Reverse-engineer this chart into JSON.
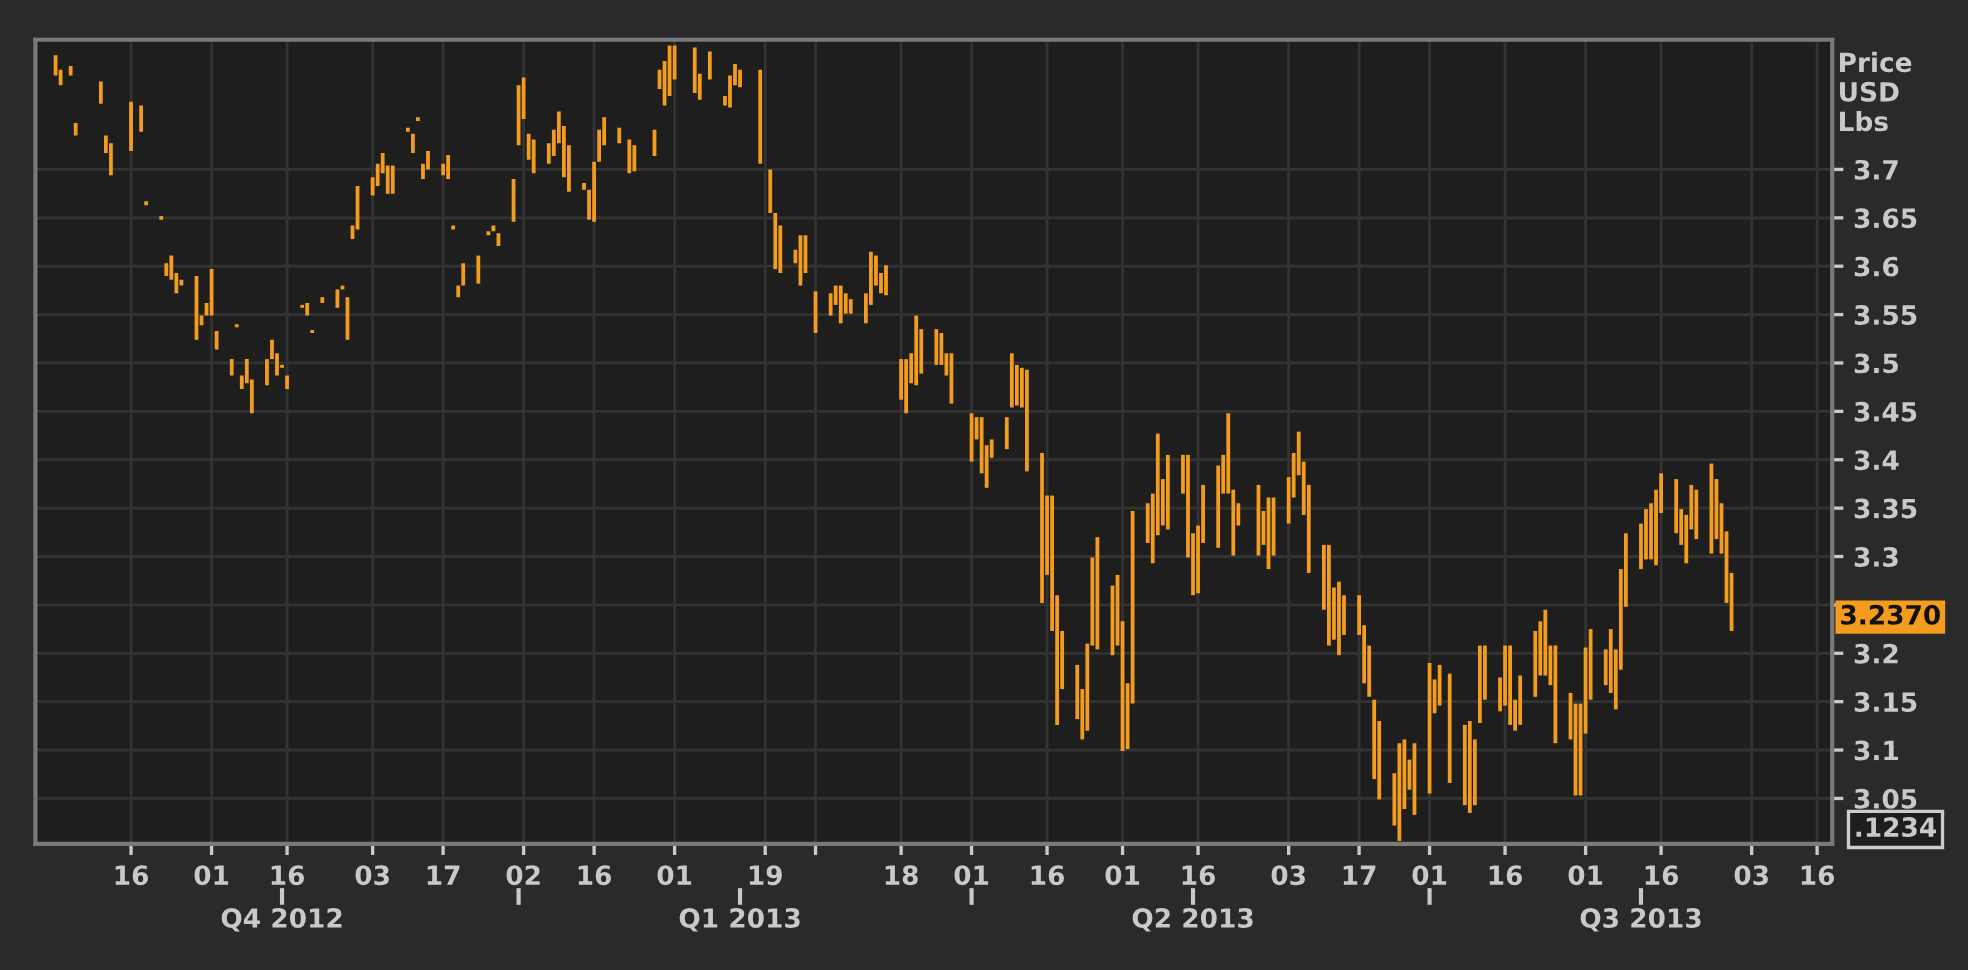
{
  "chart_data": {
    "type": "bar",
    "ylabel": "Price\nUSD\nLbs",
    "x": [
      "2012-10-01",
      "2012-10-02",
      "2012-10-04",
      "2012-10-05",
      "2012-10-10",
      "2012-10-11",
      "2012-10-12",
      "2012-10-16",
      "2012-10-18",
      "2012-10-19",
      "2012-10-22",
      "2012-10-23",
      "2012-10-24",
      "2012-10-25",
      "2012-10-26",
      "2012-10-29",
      "2012-10-30",
      "2012-10-31",
      "2012-11-01",
      "2012-11-02",
      "2012-11-05",
      "2012-11-06",
      "2012-11-07",
      "2012-11-08",
      "2012-11-09",
      "2012-11-12",
      "2012-11-13",
      "2012-11-14",
      "2012-11-15",
      "2012-11-16",
      "2012-11-19",
      "2012-11-20",
      "2012-11-21",
      "2012-11-23",
      "2012-11-26",
      "2012-11-27",
      "2012-11-28",
      "2012-11-29",
      "2012-11-30",
      "2012-12-03",
      "2012-12-04",
      "2012-12-05",
      "2012-12-06",
      "2012-12-07",
      "2012-12-10",
      "2012-12-11",
      "2012-12-12",
      "2012-12-13",
      "2012-12-14",
      "2012-12-17",
      "2012-12-18",
      "2012-12-19",
      "2012-12-20",
      "2012-12-21",
      "2012-12-24",
      "2012-12-26",
      "2012-12-27",
      "2012-12-28",
      "2012-12-31",
      "2013-01-01",
      "2013-01-02",
      "2013-01-03",
      "2013-01-04",
      "2013-01-07",
      "2013-01-08",
      "2013-01-09",
      "2013-01-10",
      "2013-01-11",
      "2013-01-14",
      "2013-01-15",
      "2013-01-16",
      "2013-01-17",
      "2013-01-18",
      "2013-01-21",
      "2013-01-23",
      "2013-01-24",
      "2013-01-28",
      "2013-01-29",
      "2013-01-30",
      "2013-01-31",
      "2013-02-01",
      "2013-02-05",
      "2013-02-06",
      "2013-02-08",
      "2013-02-11",
      "2013-02-12",
      "2013-02-13",
      "2013-02-14",
      "2013-02-18",
      "2013-02-20",
      "2013-02-21",
      "2013-02-22",
      "2013-02-25",
      "2013-02-26",
      "2013-02-27",
      "2013-03-01",
      "2013-03-04",
      "2013-03-05",
      "2013-03-06",
      "2013-03-07",
      "2013-03-08",
      "2013-03-11",
      "2013-03-12",
      "2013-03-13",
      "2013-03-14",
      "2013-03-15",
      "2013-03-18",
      "2013-03-19",
      "2013-03-20",
      "2013-03-21",
      "2013-03-22",
      "2013-03-25",
      "2013-03-26",
      "2013-03-27",
      "2013-03-28",
      "2013-04-01",
      "2013-04-02",
      "2013-04-03",
      "2013-04-04",
      "2013-04-05",
      "2013-04-08",
      "2013-04-09",
      "2013-04-10",
      "2013-04-11",
      "2013-04-12",
      "2013-04-15",
      "2013-04-16",
      "2013-04-17",
      "2013-04-18",
      "2013-04-19",
      "2013-04-22",
      "2013-04-23",
      "2013-04-24",
      "2013-04-25",
      "2013-04-26",
      "2013-04-29",
      "2013-04-30",
      "2013-05-01",
      "2013-05-02",
      "2013-05-03",
      "2013-05-06",
      "2013-05-07",
      "2013-05-08",
      "2013-05-09",
      "2013-05-10",
      "2013-05-13",
      "2013-05-14",
      "2013-05-15",
      "2013-05-16",
      "2013-05-17",
      "2013-05-20",
      "2013-05-21",
      "2013-05-22",
      "2013-05-23",
      "2013-05-24",
      "2013-05-28",
      "2013-05-29",
      "2013-05-30",
      "2013-05-31",
      "2013-06-03",
      "2013-06-04",
      "2013-06-05",
      "2013-06-06",
      "2013-06-07",
      "2013-06-10",
      "2013-06-11",
      "2013-06-12",
      "2013-06-13",
      "2013-06-14",
      "2013-06-17",
      "2013-06-18",
      "2013-06-19",
      "2013-06-20",
      "2013-06-21",
      "2013-06-24",
      "2013-06-25",
      "2013-06-26",
      "2013-06-27",
      "2013-06-28",
      "2013-07-01",
      "2013-07-02",
      "2013-07-03",
      "2013-07-05",
      "2013-07-08",
      "2013-07-09",
      "2013-07-10",
      "2013-07-11",
      "2013-07-12",
      "2013-07-15",
      "2013-07-16",
      "2013-07-17",
      "2013-07-18",
      "2013-07-19",
      "2013-07-22",
      "2013-07-23",
      "2013-07-24",
      "2013-07-25",
      "2013-07-26",
      "2013-07-29",
      "2013-07-30",
      "2013-07-31",
      "2013-08-01",
      "2013-08-02",
      "2013-08-05",
      "2013-08-06",
      "2013-08-07",
      "2013-08-08",
      "2013-08-09",
      "2013-08-12",
      "2013-08-13",
      "2013-08-14",
      "2013-08-15",
      "2013-08-16",
      "2013-08-19",
      "2013-08-20",
      "2013-08-21",
      "2013-08-22",
      "2013-08-23",
      "2013-08-26",
      "2013-08-27",
      "2013-08-28",
      "2013-08-29",
      "2013-08-30"
    ],
    "base": [
      3.797,
      3.787,
      3.797,
      3.735,
      3.768,
      3.717,
      3.694,
      3.719,
      3.739,
      3.663,
      3.648,
      3.59,
      3.586,
      3.572,
      3.58,
      3.524,
      3.539,
      3.549,
      3.549,
      3.514,
      3.487,
      3.537,
      3.473,
      3.479,
      3.448,
      3.477,
      3.504,
      3.487,
      3.495,
      3.473,
      3.557,
      3.549,
      3.531,
      3.562,
      3.557,
      3.576,
      3.524,
      3.628,
      3.638,
      3.673,
      3.683,
      3.696,
      3.675,
      3.675,
      3.739,
      3.717,
      3.75,
      3.69,
      3.7,
      3.694,
      3.69,
      3.638,
      3.568,
      3.58,
      3.582,
      3.632,
      3.636,
      3.621,
      3.646,
      3.725,
      3.752,
      3.71,
      3.696,
      3.706,
      3.714,
      3.727,
      3.692,
      3.677,
      3.679,
      3.648,
      3.646,
      3.708,
      3.725,
      3.727,
      3.696,
      3.698,
      3.714,
      3.783,
      3.766,
      3.776,
      3.793,
      3.779,
      3.772,
      3.793,
      3.766,
      3.764,
      3.787,
      3.785,
      3.706,
      3.655,
      3.597,
      3.593,
      3.603,
      3.58,
      3.593,
      3.531,
      3.549,
      3.56,
      3.541,
      3.551,
      3.551,
      3.541,
      3.56,
      3.58,
      3.572,
      3.57,
      3.462,
      3.448,
      3.479,
      3.477,
      3.489,
      3.498,
      3.498,
      3.487,
      3.458,
      3.398,
      3.421,
      3.386,
      3.371,
      3.402,
      3.411,
      3.454,
      3.456,
      3.454,
      3.388,
      3.252,
      3.281,
      3.223,
      3.126,
      3.163,
      3.132,
      3.111,
      3.12,
      3.208,
      3.204,
      3.198,
      3.208,
      3.099,
      3.101,
      3.148,
      3.314,
      3.293,
      3.322,
      3.332,
      3.328,
      3.365,
      3.299,
      3.26,
      3.262,
      3.314,
      3.309,
      3.365,
      3.365,
      3.301,
      3.332,
      3.301,
      3.312,
      3.287,
      3.301,
      3.334,
      3.361,
      3.384,
      3.343,
      3.283,
      3.245,
      3.208,
      3.214,
      3.198,
      3.219,
      3.219,
      3.169,
      3.155,
      3.07,
      3.049,
      3.022,
      3.006,
      3.039,
      3.059,
      3.033,
      3.055,
      3.138,
      3.146,
      3.066,
      3.043,
      3.035,
      3.043,
      3.128,
      3.152,
      3.14,
      3.146,
      3.126,
      3.12,
      3.126,
      3.155,
      3.177,
      3.177,
      3.167,
      3.107,
      3.111,
      3.053,
      3.053,
      3.117,
      3.152,
      3.167,
      3.159,
      3.142,
      3.183,
      3.248,
      3.287,
      3.297,
      3.297,
      3.291,
      3.345,
      3.324,
      3.312,
      3.293,
      3.328,
      3.318,
      3.303,
      3.318,
      3.303,
      3.252,
      3.223
    ],
    "values": [
      0.021,
      0.016,
      0.01,
      0.013,
      0.023,
      0.018,
      0.033,
      0.051,
      0.027,
      0.004,
      0.004,
      0.013,
      0.025,
      0.021,
      0.006,
      0.066,
      0.01,
      0.013,
      0.048,
      0.019,
      0.017,
      0.003,
      0.014,
      0.025,
      0.035,
      0.027,
      0.02,
      0.023,
      0.003,
      0.014,
      0.003,
      0.013,
      0.003,
      0.006,
      0.019,
      0.004,
      0.044,
      0.014,
      0.045,
      0.019,
      0.023,
      0.021,
      0.029,
      0.029,
      0.004,
      0.02,
      0.004,
      0.016,
      0.019,
      0.012,
      0.025,
      0.004,
      0.012,
      0.023,
      0.029,
      0.004,
      0.006,
      0.013,
      0.044,
      0.062,
      0.043,
      0.027,
      0.035,
      0.021,
      0.027,
      0.033,
      0.053,
      0.048,
      0.007,
      0.031,
      0.062,
      0.033,
      0.029,
      0.016,
      0.035,
      0.027,
      0.027,
      0.02,
      0.046,
      0.052,
      0.035,
      0.047,
      0.027,
      0.029,
      0.01,
      0.033,
      0.022,
      0.018,
      0.097,
      0.045,
      0.058,
      0.049,
      0.014,
      0.052,
      0.039,
      0.043,
      0.023,
      0.02,
      0.039,
      0.021,
      0.015,
      0.031,
      0.055,
      0.031,
      0.021,
      0.031,
      0.042,
      0.056,
      0.031,
      0.072,
      0.046,
      0.037,
      0.033,
      0.023,
      0.052,
      0.05,
      0.023,
      0.058,
      0.044,
      0.019,
      0.033,
      0.056,
      0.042,
      0.041,
      0.105,
      0.155,
      0.082,
      0.14,
      0.134,
      0.06,
      0.056,
      0.052,
      0.09,
      0.091,
      0.116,
      0.072,
      0.073,
      0.134,
      0.068,
      0.199,
      0.041,
      0.072,
      0.105,
      0.048,
      0.077,
      0.04,
      0.106,
      0.064,
      0.07,
      0.06,
      0.085,
      0.04,
      0.083,
      0.068,
      0.023,
      0.073,
      0.035,
      0.074,
      0.06,
      0.048,
      0.046,
      0.045,
      0.055,
      0.091,
      0.067,
      0.104,
      0.054,
      0.076,
      0.041,
      0.041,
      0.06,
      0.053,
      0.082,
      0.081,
      0.054,
      0.101,
      0.072,
      0.031,
      0.074,
      0.135,
      0.035,
      0.042,
      0.113,
      0.083,
      0.095,
      0.068,
      0.08,
      0.056,
      0.035,
      0.062,
      0.082,
      0.032,
      0.051,
      0.068,
      0.056,
      0.068,
      0.041,
      0.101,
      0.048,
      0.095,
      0.095,
      0.089,
      0.073,
      0.037,
      0.066,
      0.062,
      0.104,
      0.076,
      0.047,
      0.052,
      0.058,
      0.078,
      0.041,
      0.056,
      0.037,
      0.05,
      0.046,
      0.051,
      0.093,
      0.062,
      0.052,
      0.074,
      0.06
    ],
    "color": "#f39c1e",
    "xlim": [
      "2012-09-27",
      "2013-09-19"
    ],
    "xticks": [
      {
        "value": "2012-10-16",
        "label": "16"
      },
      {
        "value": "2012-11-01",
        "label": "01"
      },
      {
        "value": "2012-11-16",
        "label": "16"
      },
      {
        "value": "2012-12-03",
        "label": "03"
      },
      {
        "value": "2012-12-17",
        "label": "17"
      },
      {
        "value": "2013-01-02",
        "label": "02"
      },
      {
        "value": "2013-01-16",
        "label": "16"
      },
      {
        "value": "2013-02-01",
        "label": "01"
      },
      {
        "value": "2013-02-19",
        "label": "19"
      },
      {
        "value": "2013-03-01",
        "label": null
      },
      {
        "value": "2013-03-18",
        "label": "18"
      },
      {
        "value": "2013-04-01",
        "label": "01"
      },
      {
        "value": "2013-04-16",
        "label": "16"
      },
      {
        "value": "2013-05-01",
        "label": "01"
      },
      {
        "value": "2013-05-16",
        "label": "16"
      },
      {
        "value": "2013-06-03",
        "label": "03"
      },
      {
        "value": "2013-06-17",
        "label": "17"
      },
      {
        "value": "2013-07-01",
        "label": "01"
      },
      {
        "value": "2013-07-16",
        "label": "16"
      },
      {
        "value": "2013-08-01",
        "label": "01"
      },
      {
        "value": "2013-08-16",
        "label": "16"
      },
      {
        "value": "2013-09-03",
        "label": "03"
      },
      {
        "value": "2013-09-16",
        "label": "16"
      }
    ],
    "x2ticks": [
      {
        "value": "2012-11-15",
        "label": "Q4 2012"
      },
      {
        "value": "2013-01-01",
        "label": null
      },
      {
        "value": "2013-02-14",
        "label": "Q1 2013"
      },
      {
        "value": "2013-04-01",
        "label": null
      },
      {
        "value": "2013-05-15",
        "label": "Q2 2013"
      },
      {
        "value": "2013-07-01",
        "label": null
      },
      {
        "value": "2013-08-12",
        "label": "Q3 2013"
      }
    ],
    "ylim": [
      3.003,
      3.834
    ],
    "yticks": [
      3.05,
      3.1,
      3.15,
      3.2,
      {
        "value": 3.25,
        "label": null
      },
      3.3,
      3.35,
      3.4,
      3.45,
      3.5,
      3.55,
      3.6,
      3.65,
      3.7
    ],
    "grid": true,
    "x2lim": [
      "2012-09-27",
      "2013-09-19"
    ],
    "annotations": [
      "3.2370",
      ".1234"
    ]
  }
}
